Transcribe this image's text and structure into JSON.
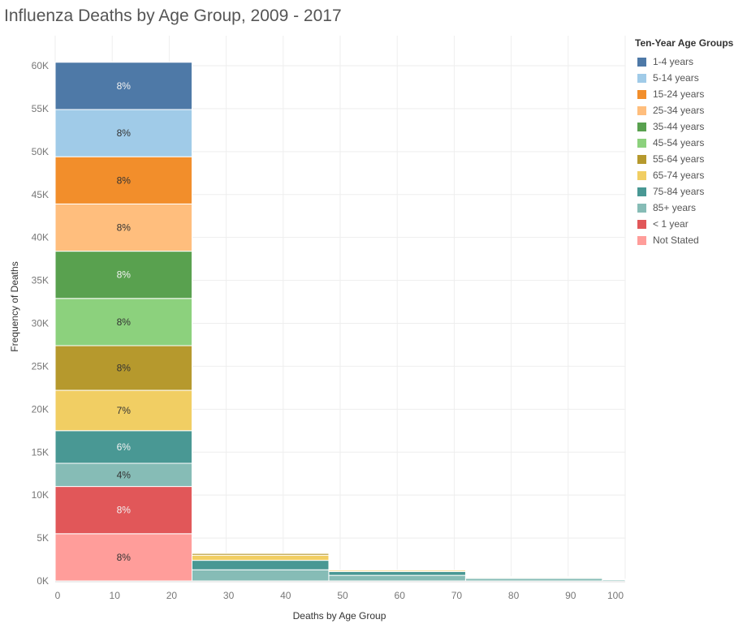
{
  "title": "Influenza Deaths by Age Group, 2009 - 2017",
  "legend": {
    "title": "Ten-Year Age Groups",
    "items": [
      {
        "label": "1-4 years",
        "color": "#4e79a7"
      },
      {
        "label": "5-14 years",
        "color": "#a0cbe8"
      },
      {
        "label": "15-24 years",
        "color": "#f28e2b"
      },
      {
        "label": "25-34 years",
        "color": "#ffbe7d"
      },
      {
        "label": "35-44 years",
        "color": "#59a14f"
      },
      {
        "label": "45-54 years",
        "color": "#8cd17d"
      },
      {
        "label": "55-64 years",
        "color": "#b6992d"
      },
      {
        "label": "65-74 years",
        "color": "#f1ce63"
      },
      {
        "label": "75-84 years",
        "color": "#499894"
      },
      {
        "label": "85+ years",
        "color": "#86bcb6"
      },
      {
        "label": "< 1 year",
        "color": "#e15759"
      },
      {
        "label": "Not Stated",
        "color": "#ff9d9a"
      }
    ]
  },
  "chart_data": {
    "type": "bar",
    "stacked": true,
    "histogram": true,
    "xlabel": "Deaths by Age Group",
    "ylabel": "Frequency of Deaths",
    "xlim": [
      0,
      100
    ],
    "ylim": [
      0,
      60000
    ],
    "xticks": [
      0,
      10,
      20,
      30,
      40,
      50,
      60,
      70,
      80,
      90,
      100
    ],
    "yticks": [
      0,
      5000,
      10000,
      15000,
      20000,
      25000,
      30000,
      35000,
      40000,
      45000,
      50000,
      55000,
      60000
    ],
    "ytick_labels": [
      "0K",
      "5K",
      "10K",
      "15K",
      "20K",
      "25K",
      "30K",
      "35K",
      "40K",
      "45K",
      "50K",
      "55K",
      "60K"
    ],
    "bins": [
      {
        "x0": 0,
        "x1": 24,
        "segments": [
          {
            "group": "Not Stated",
            "value": 5500,
            "label": "8%"
          },
          {
            "group": "< 1 year",
            "value": 5500,
            "label": "8%"
          },
          {
            "group": "85+ years",
            "value": 2700,
            "label": "4%"
          },
          {
            "group": "75-84 years",
            "value": 3800,
            "label": "6%"
          },
          {
            "group": "65-74 years",
            "value": 4700,
            "label": "7%"
          },
          {
            "group": "55-64 years",
            "value": 5200,
            "label": "8%"
          },
          {
            "group": "45-54 years",
            "value": 5500,
            "label": "8%"
          },
          {
            "group": "35-44 years",
            "value": 5500,
            "label": "8%"
          },
          {
            "group": "25-34 years",
            "value": 5500,
            "label": "8%"
          },
          {
            "group": "15-24 years",
            "value": 5500,
            "label": "8%"
          },
          {
            "group": "5-14 years",
            "value": 5500,
            "label": "8%"
          },
          {
            "group": "1-4 years",
            "value": 5500,
            "label": "8%"
          }
        ]
      },
      {
        "x0": 24,
        "x1": 48,
        "segments": [
          {
            "group": "85+ years",
            "value": 1300
          },
          {
            "group": "75-84 years",
            "value": 1100
          },
          {
            "group": "65-74 years",
            "value": 600
          },
          {
            "group": "55-64 years",
            "value": 200
          }
        ]
      },
      {
        "x0": 48,
        "x1": 72,
        "segments": [
          {
            "group": "85+ years",
            "value": 650
          },
          {
            "group": "75-84 years",
            "value": 450
          },
          {
            "group": "65-74 years",
            "value": 150
          }
        ]
      },
      {
        "x0": 72,
        "x1": 96,
        "segments": [
          {
            "group": "85+ years",
            "value": 300
          },
          {
            "group": "75-84 years",
            "value": 100
          },
          {
            "group": "65-74 years",
            "value": 100
          }
        ]
      },
      {
        "x0": 96,
        "x1": 100,
        "segments": [
          {
            "group": "85+ years",
            "value": 150
          },
          {
            "group": "75-84 years",
            "value": 50
          }
        ]
      }
    ]
  }
}
